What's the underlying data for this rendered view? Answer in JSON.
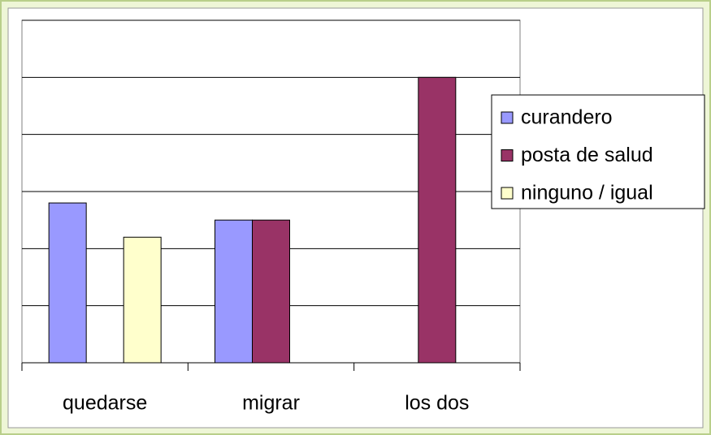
{
  "chart_data": {
    "type": "bar",
    "categories": [
      "quedarse",
      "migrar",
      "los dos"
    ],
    "series": [
      {
        "name": "curandero",
        "color": "#9999ff",
        "values": [
          2.8,
          2.5,
          null
        ]
      },
      {
        "name": "posta de salud",
        "color": "#993366",
        "values": [
          null,
          2.5,
          5
        ]
      },
      {
        "name": "ninguno / igual",
        "color": "#ffffcc",
        "values": [
          2.2,
          null,
          null
        ]
      }
    ],
    "ylim": [
      0,
      6
    ],
    "yticks": [
      0,
      1,
      2,
      3,
      4,
      5,
      6
    ],
    "grid": true,
    "legend": "right"
  }
}
